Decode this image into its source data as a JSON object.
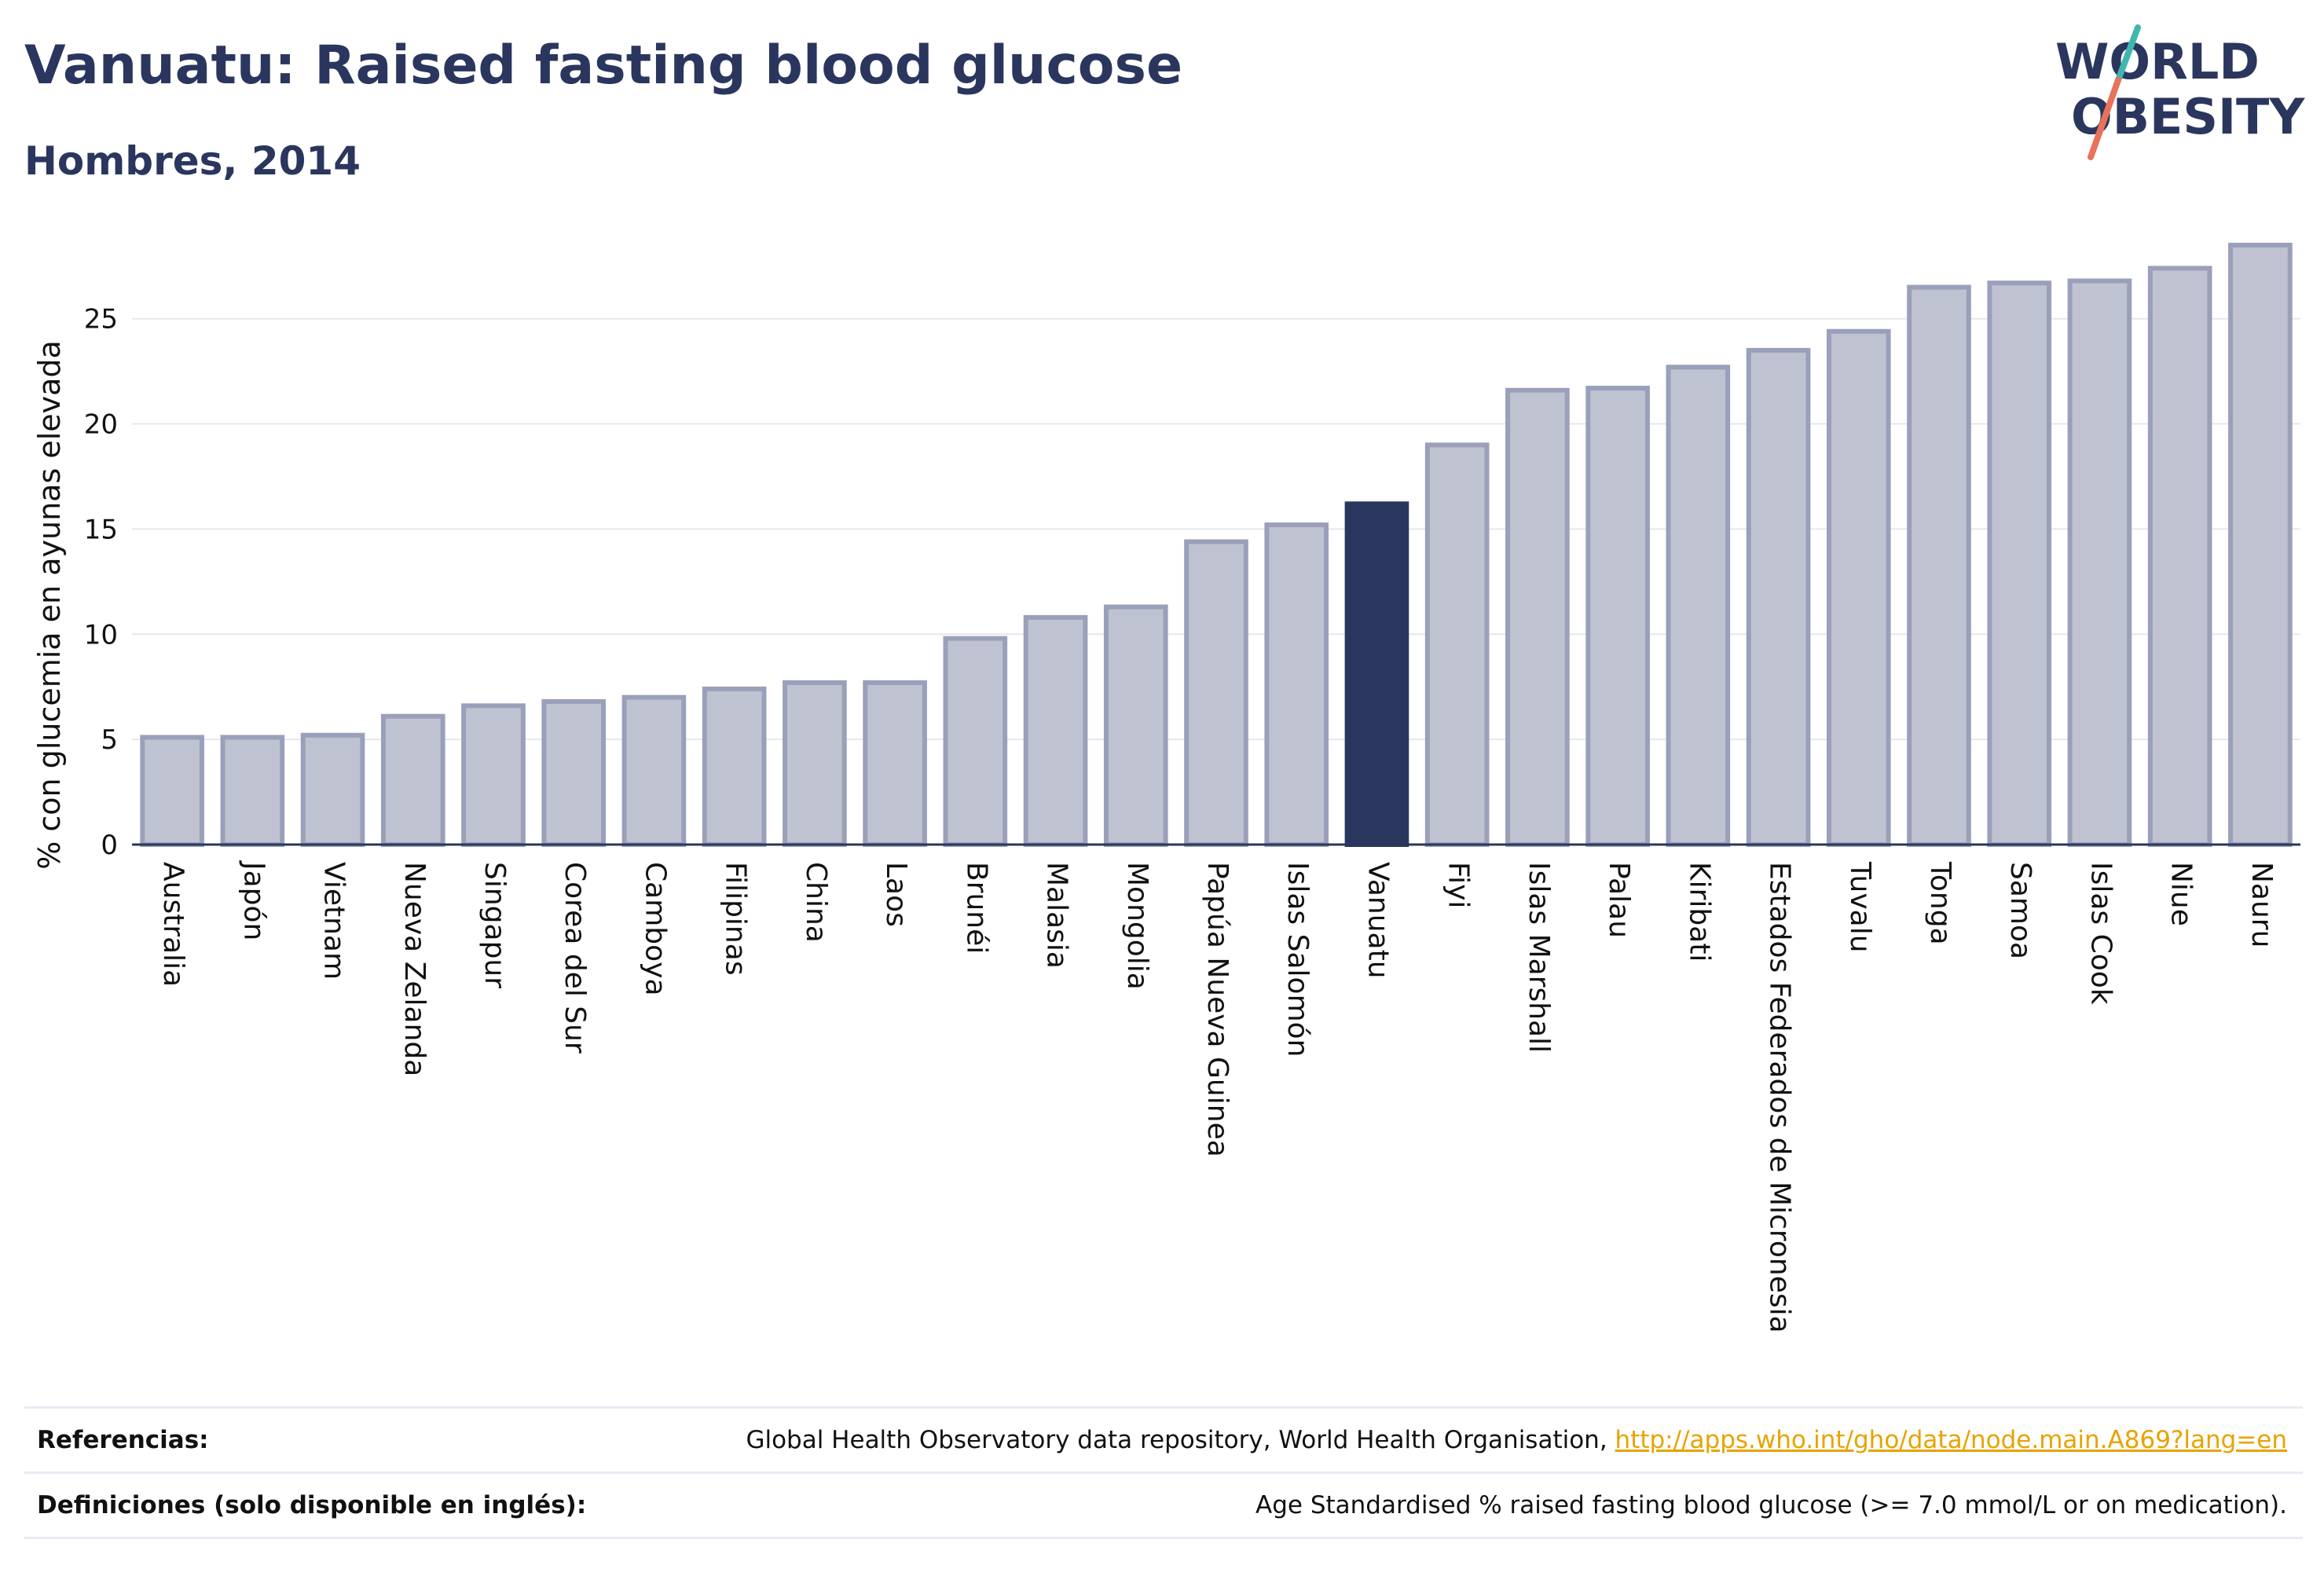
{
  "header": {
    "title": "Vanuatu: Raised fasting blood glucose",
    "subtitle": "Hombres, 2014"
  },
  "logo": {
    "line1": "WORLD",
    "line2": "OBESITY",
    "accent_colors": [
      "#3fb6b0",
      "#e8735a"
    ]
  },
  "colors": {
    "bar": "#bfc2d0",
    "bar_border": "#9aa0ba",
    "highlight": "#2a365e",
    "axis": "#2a365e",
    "grid": "#e6e7ee"
  },
  "chart_data": {
    "type": "bar",
    "title": "Vanuatu: Raised fasting blood glucose",
    "subtitle": "Hombres, 2014",
    "ylabel": "% con glucemia en ayunas elevada",
    "xlabel": "",
    "ylim": [
      0,
      28.5
    ],
    "yticks": [
      0,
      5,
      10,
      15,
      20,
      25
    ],
    "grid": true,
    "highlight": "Vanuatu",
    "categories": [
      "Australia",
      "Japón",
      "Vietnam",
      "Nueva Zelanda",
      "Singapur",
      "Corea del Sur",
      "Camboya",
      "Filipinas",
      "China",
      "Laos",
      "Brunéi",
      "Malasia",
      "Mongolia",
      "Papúa Nueva Guinea",
      "Islas Salomón",
      "Vanuatu",
      "Fiyi",
      "Islas Marshall",
      "Palau",
      "Kiribati",
      "Estados Federados de Micronesia",
      "Tuvalu",
      "Tonga",
      "Samoa",
      "Islas Cook",
      "Niue",
      "Nauru"
    ],
    "values": [
      5.1,
      5.1,
      5.2,
      6.1,
      6.6,
      6.8,
      7.0,
      7.4,
      7.7,
      7.7,
      9.8,
      10.8,
      11.3,
      14.4,
      15.2,
      16.2,
      19.0,
      21.6,
      21.7,
      22.7,
      23.5,
      24.4,
      26.5,
      26.7,
      26.8,
      27.4,
      28.5
    ]
  },
  "footer": {
    "references_label": "Referencias:",
    "references_text": "Global Health Observatory data repository, World Health Organisation,",
    "references_link": "http://apps.who.int/gho/data/node.main.A869?lang=en",
    "definitions_label": "Definiciones (solo disponible en inglés):",
    "definitions_text": "Age Standardised % raised fasting blood glucose (>= 7.0 mmol/L or on medication)."
  }
}
